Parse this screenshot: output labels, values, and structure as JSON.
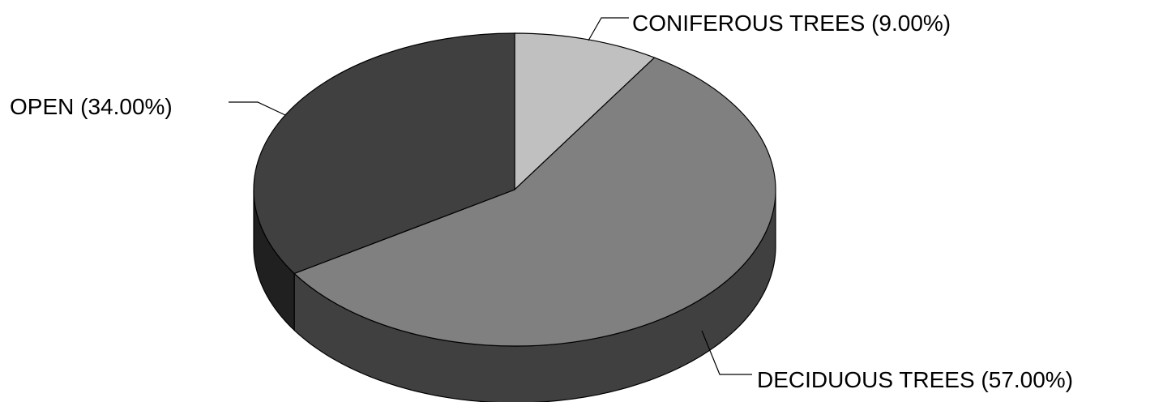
{
  "chart_data": {
    "type": "pie",
    "style": "3d",
    "categories": [
      "CONIFEROUS TREES",
      "DECIDUOUS TREES",
      "OPEN"
    ],
    "values": [
      9.0,
      57.0,
      34.0
    ],
    "unit": "%",
    "labels": [
      "CONIFEROUS TREES (9.00%)",
      "DECIDUOUS TREES (57.00%)",
      "OPEN  (34.00%)"
    ],
    "colors": {
      "top": [
        "#c0c0c0",
        "#808080",
        "#404040"
      ],
      "side": [
        "#909090",
        "#404040",
        "#202020"
      ]
    },
    "start_angle_deg": -90,
    "direction": "clockwise",
    "legend": "none",
    "title": ""
  }
}
